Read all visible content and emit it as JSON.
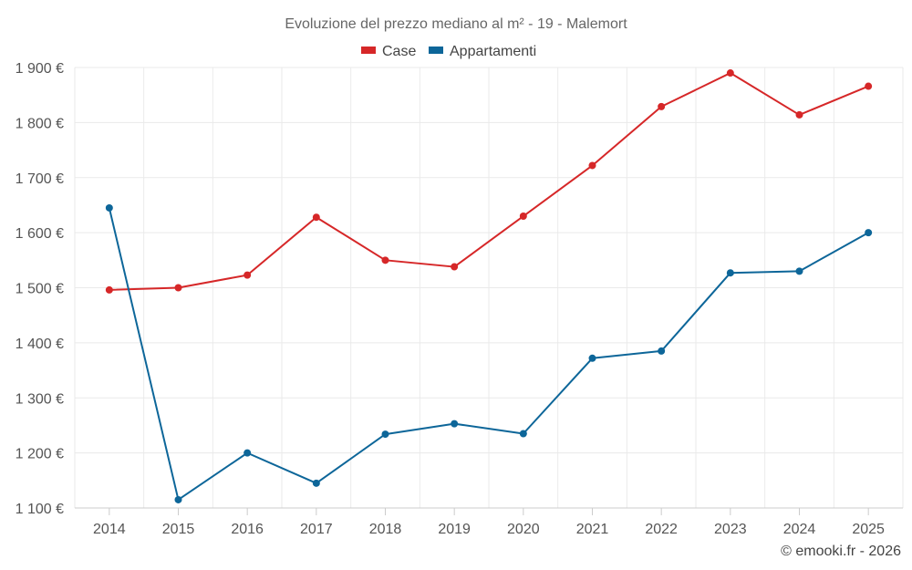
{
  "chart_data": {
    "type": "line",
    "title": "Evoluzione del prezzo mediano al m² - 19 - Malemort",
    "xlabel": "",
    "ylabel": "",
    "categories": [
      "2014",
      "2015",
      "2016",
      "2017",
      "2018",
      "2019",
      "2020",
      "2021",
      "2022",
      "2023",
      "2024",
      "2025"
    ],
    "ylim": [
      1100,
      1900
    ],
    "yticks": [
      1100,
      1200,
      1300,
      1400,
      1500,
      1600,
      1700,
      1800,
      1900
    ],
    "ytick_labels": [
      "1 100 €",
      "1 200 €",
      "1 300 €",
      "1 400 €",
      "1 500 €",
      "1 600 €",
      "1 700 €",
      "1 800 €",
      "1 900 €"
    ],
    "grid": true,
    "legend_position": "top-center",
    "series": [
      {
        "name": "Case",
        "color": "#d62728",
        "values": [
          1496,
          1500,
          1523,
          1628,
          1550,
          1538,
          1630,
          1722,
          1829,
          1890,
          1814,
          1866
        ]
      },
      {
        "name": "Appartamenti",
        "color": "#0d6699",
        "values": [
          1645,
          1115,
          1200,
          1145,
          1234,
          1253,
          1235,
          1372,
          1385,
          1527,
          1530,
          1600
        ]
      }
    ]
  },
  "credit": "© emooki.fr - 2026"
}
